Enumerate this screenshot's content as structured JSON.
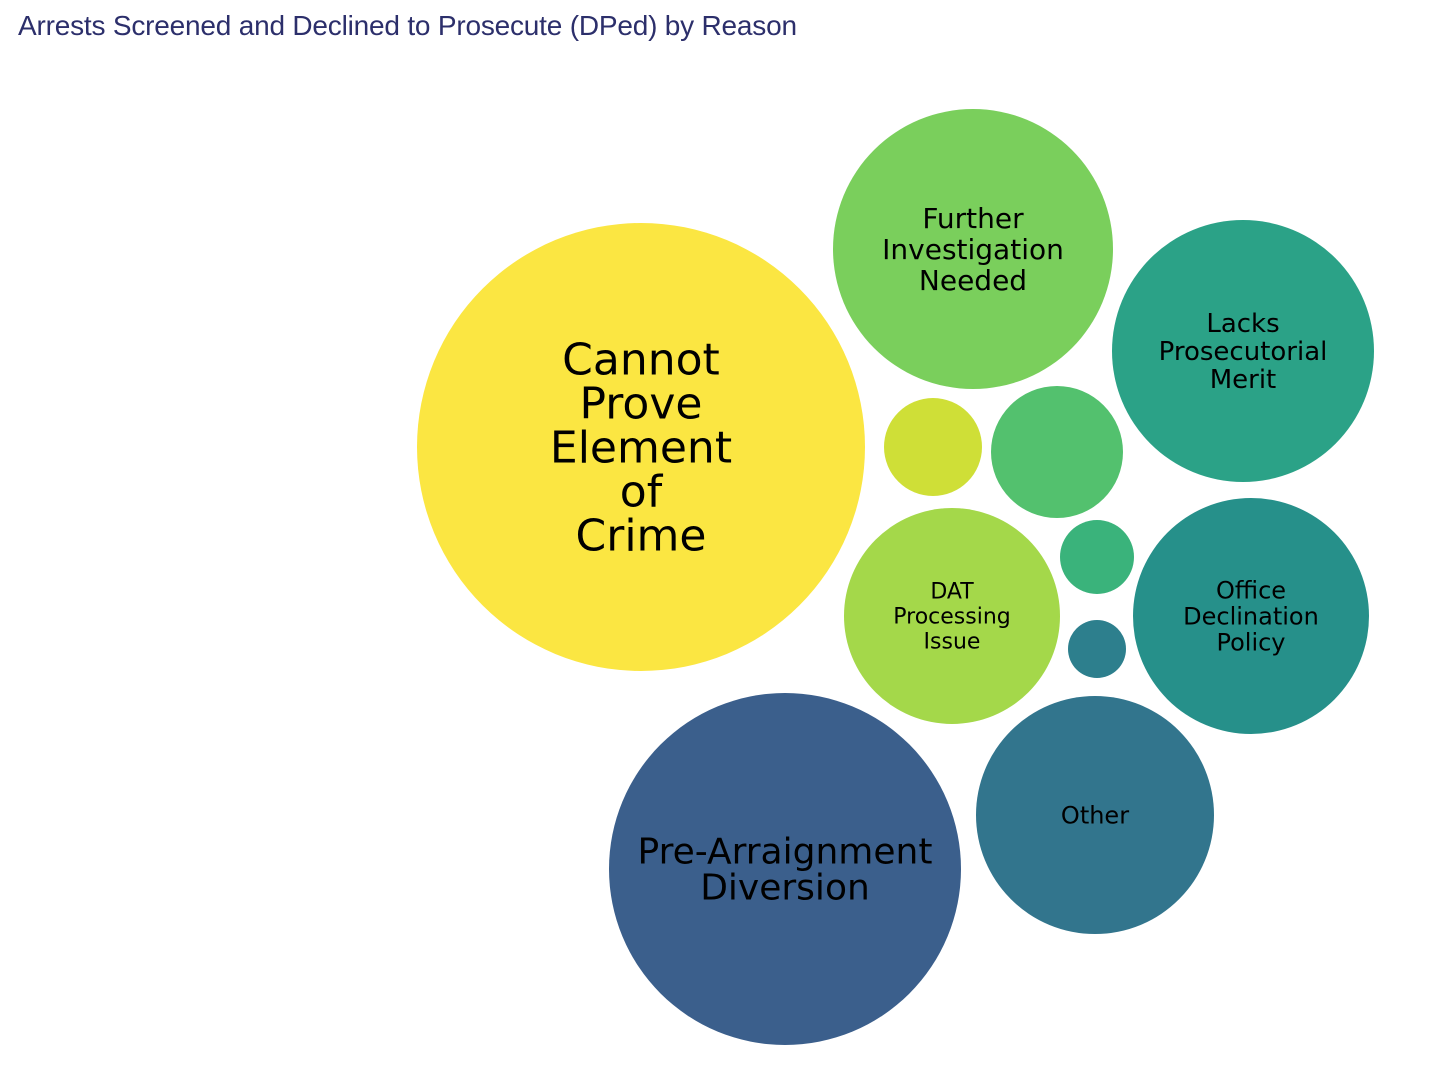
{
  "chart_data": {
    "type": "bubble",
    "title": "Arrests Screened and Declined to Prosecute (DPed) by Reason",
    "bubbles": [
      {
        "label": "Cannot Prove Element of Crime",
        "label_lines": [
          "Cannot",
          "Prove",
          "Element",
          "of",
          "Crime"
        ],
        "relative_size": 1.0,
        "color": "#fbe642"
      },
      {
        "label": "Pre-Arraignment Diversion",
        "label_lines": [
          "Pre-Arraignment",
          "Diversion"
        ],
        "relative_size": 0.62,
        "color": "#3b5f8c"
      },
      {
        "label": "Further Investigation Needed",
        "label_lines": [
          "Further",
          "Investigation",
          "Needed"
        ],
        "relative_size": 0.39,
        "color": "#7acf5c"
      },
      {
        "label": "Lacks Prosecutorial Merit",
        "label_lines": [
          "Lacks",
          "Prosecutorial",
          "Merit"
        ],
        "relative_size": 0.34,
        "color": "#2ba287"
      },
      {
        "label": "Office Declination Policy",
        "label_lines": [
          "Office",
          "Declination",
          "Policy"
        ],
        "relative_size": 0.28,
        "color": "#26908a"
      },
      {
        "label": "Other",
        "label_lines": [
          "Other"
        ],
        "relative_size": 0.28,
        "color": "#32758d"
      },
      {
        "label": "DAT Processing Issue",
        "label_lines": [
          "DAT",
          "Processing",
          "Issue"
        ],
        "relative_size": 0.24,
        "color": "#a4d84a"
      },
      {
        "label": "",
        "label_lines": [],
        "relative_size": 0.09,
        "color": "#53c16e"
      },
      {
        "label": "",
        "label_lines": [],
        "relative_size": 0.05,
        "color": "#cfdf37"
      },
      {
        "label": "",
        "label_lines": [],
        "relative_size": 0.03,
        "color": "#3ab37b"
      },
      {
        "label": "",
        "label_lines": [],
        "relative_size": 0.02,
        "color": "#2d7f8d"
      }
    ]
  }
}
